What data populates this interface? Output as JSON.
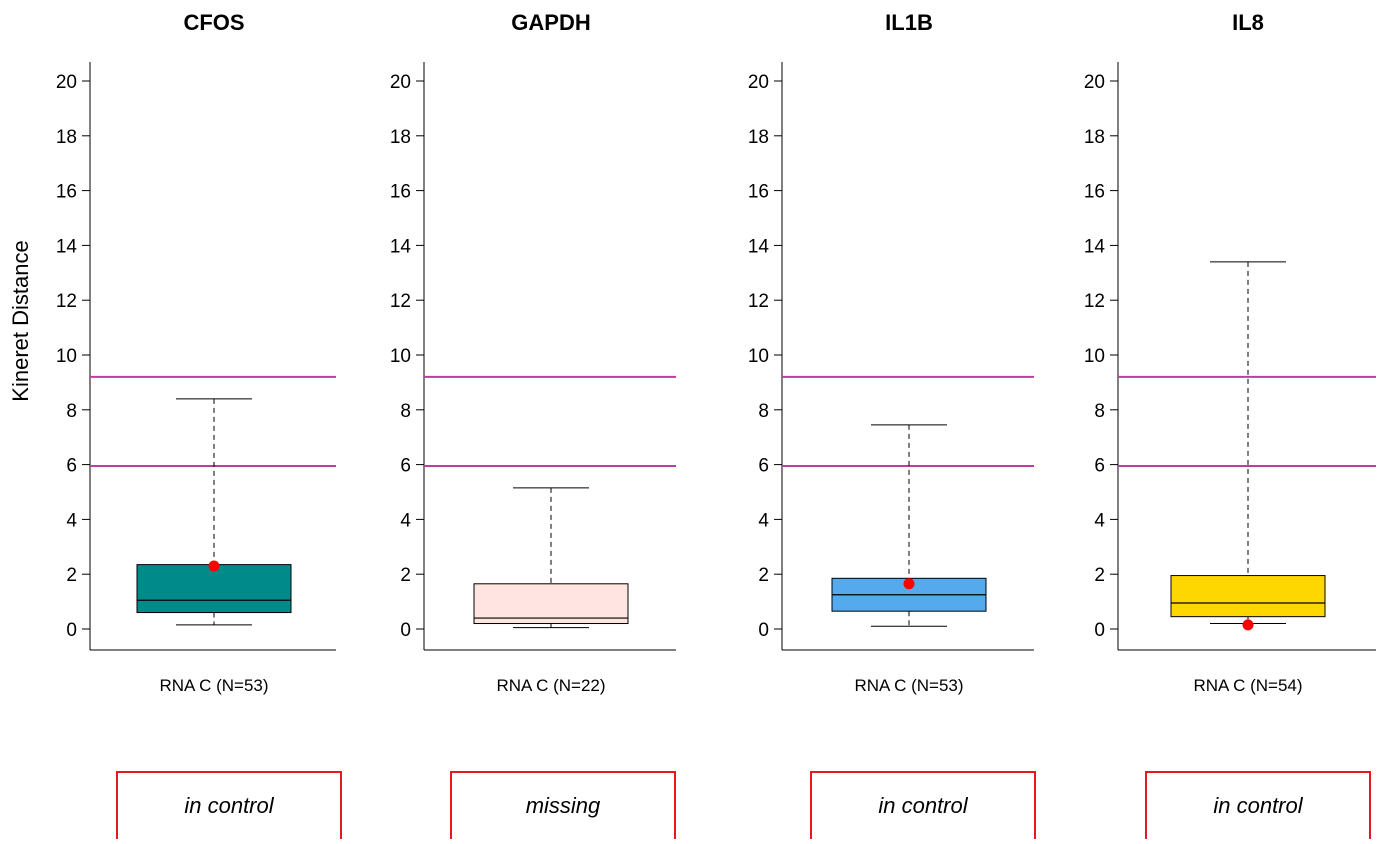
{
  "figure": {
    "ylabel": "Kineret Distance"
  },
  "chart_data": [
    {
      "type": "box",
      "title": "CFOS",
      "category": "RNA C (N=53)",
      "ylim": [
        0,
        20
      ],
      "yticks": [
        0,
        2,
        4,
        6,
        8,
        10,
        12,
        14,
        16,
        18,
        20
      ],
      "box": {
        "whisker_low": 0.15,
        "q1": 0.6,
        "median": 1.05,
        "q3": 2.35,
        "whisker_high": 8.4
      },
      "point": 2.3,
      "fill": "#008b8b",
      "reference_lines": [
        5.95,
        9.2
      ],
      "status": "in control"
    },
    {
      "type": "box",
      "title": "GAPDH",
      "category": "RNA C (N=22)",
      "ylim": [
        0,
        20
      ],
      "yticks": [
        0,
        2,
        4,
        6,
        8,
        10,
        12,
        14,
        16,
        18,
        20
      ],
      "box": {
        "whisker_low": 0.05,
        "q1": 0.2,
        "median": 0.4,
        "q3": 1.65,
        "whisker_high": 5.15
      },
      "point": null,
      "fill": "#ffe4e1",
      "reference_lines": [
        5.95,
        9.2
      ],
      "status": "missing"
    },
    {
      "type": "box",
      "title": "IL1B",
      "category": "RNA C (N=53)",
      "ylim": [
        0,
        20
      ],
      "yticks": [
        0,
        2,
        4,
        6,
        8,
        10,
        12,
        14,
        16,
        18,
        20
      ],
      "box": {
        "whisker_low": 0.1,
        "q1": 0.65,
        "median": 1.25,
        "q3": 1.85,
        "whisker_high": 7.45
      },
      "point": 1.65,
      "fill": "#55aaee",
      "reference_lines": [
        5.95,
        9.2
      ],
      "status": "in control"
    },
    {
      "type": "box",
      "title": "IL8",
      "category": "RNA C (N=54)",
      "ylim": [
        0,
        20
      ],
      "yticks": [
        0,
        2,
        4,
        6,
        8,
        10,
        12,
        14,
        16,
        18,
        20
      ],
      "box": {
        "whisker_low": 0.2,
        "q1": 0.45,
        "median": 0.95,
        "q3": 1.95,
        "whisker_high": 13.4
      },
      "point": 0.15,
      "fill": "#ffd700",
      "reference_lines": [
        5.95,
        9.2
      ],
      "status": "in control"
    }
  ],
  "colors": {
    "reference_line": "#c03ba0",
    "point": "#ff0000",
    "status_border": "#e41a1c"
  }
}
